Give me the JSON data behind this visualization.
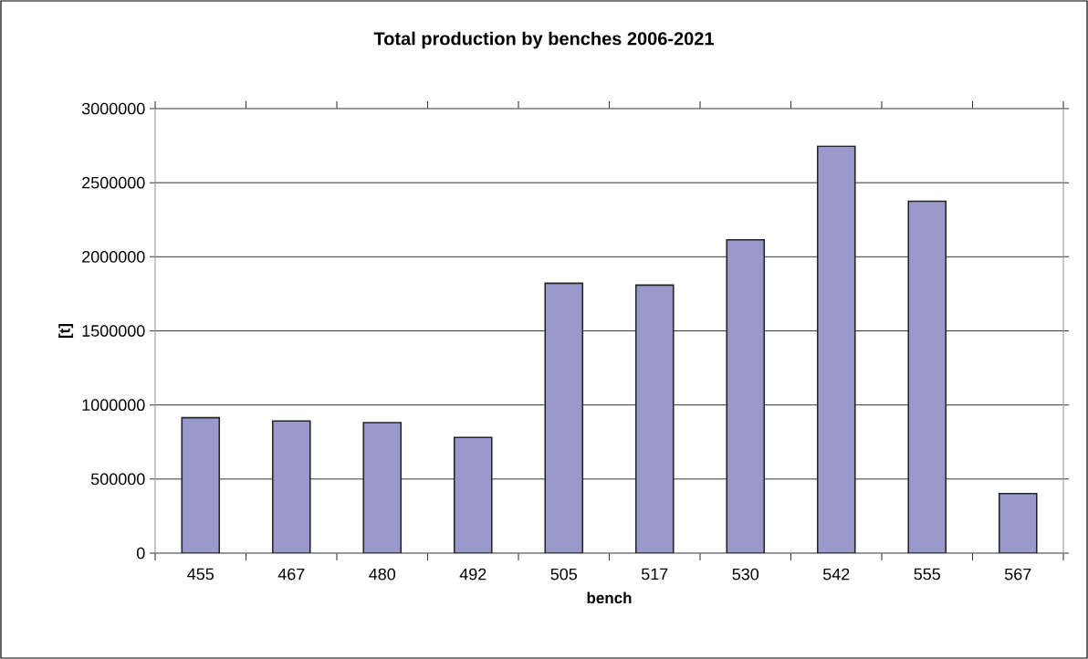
{
  "chart_data": {
    "type": "bar",
    "title": "Total production by benches 2006-2021",
    "xlabel": "bench",
    "ylabel": "[t]",
    "categories": [
      "455",
      "467",
      "480",
      "492",
      "505",
      "517",
      "530",
      "542",
      "555",
      "567"
    ],
    "values": [
      914000,
      892000,
      881000,
      781000,
      1821000,
      1809000,
      2114000,
      2746000,
      2375000,
      402000
    ],
    "color": "#9999cc",
    "ylim": [
      0,
      3000000
    ],
    "yticks": [
      0,
      500000,
      1000000,
      1500000,
      2000000,
      2500000,
      3000000
    ],
    "grid": "y"
  }
}
